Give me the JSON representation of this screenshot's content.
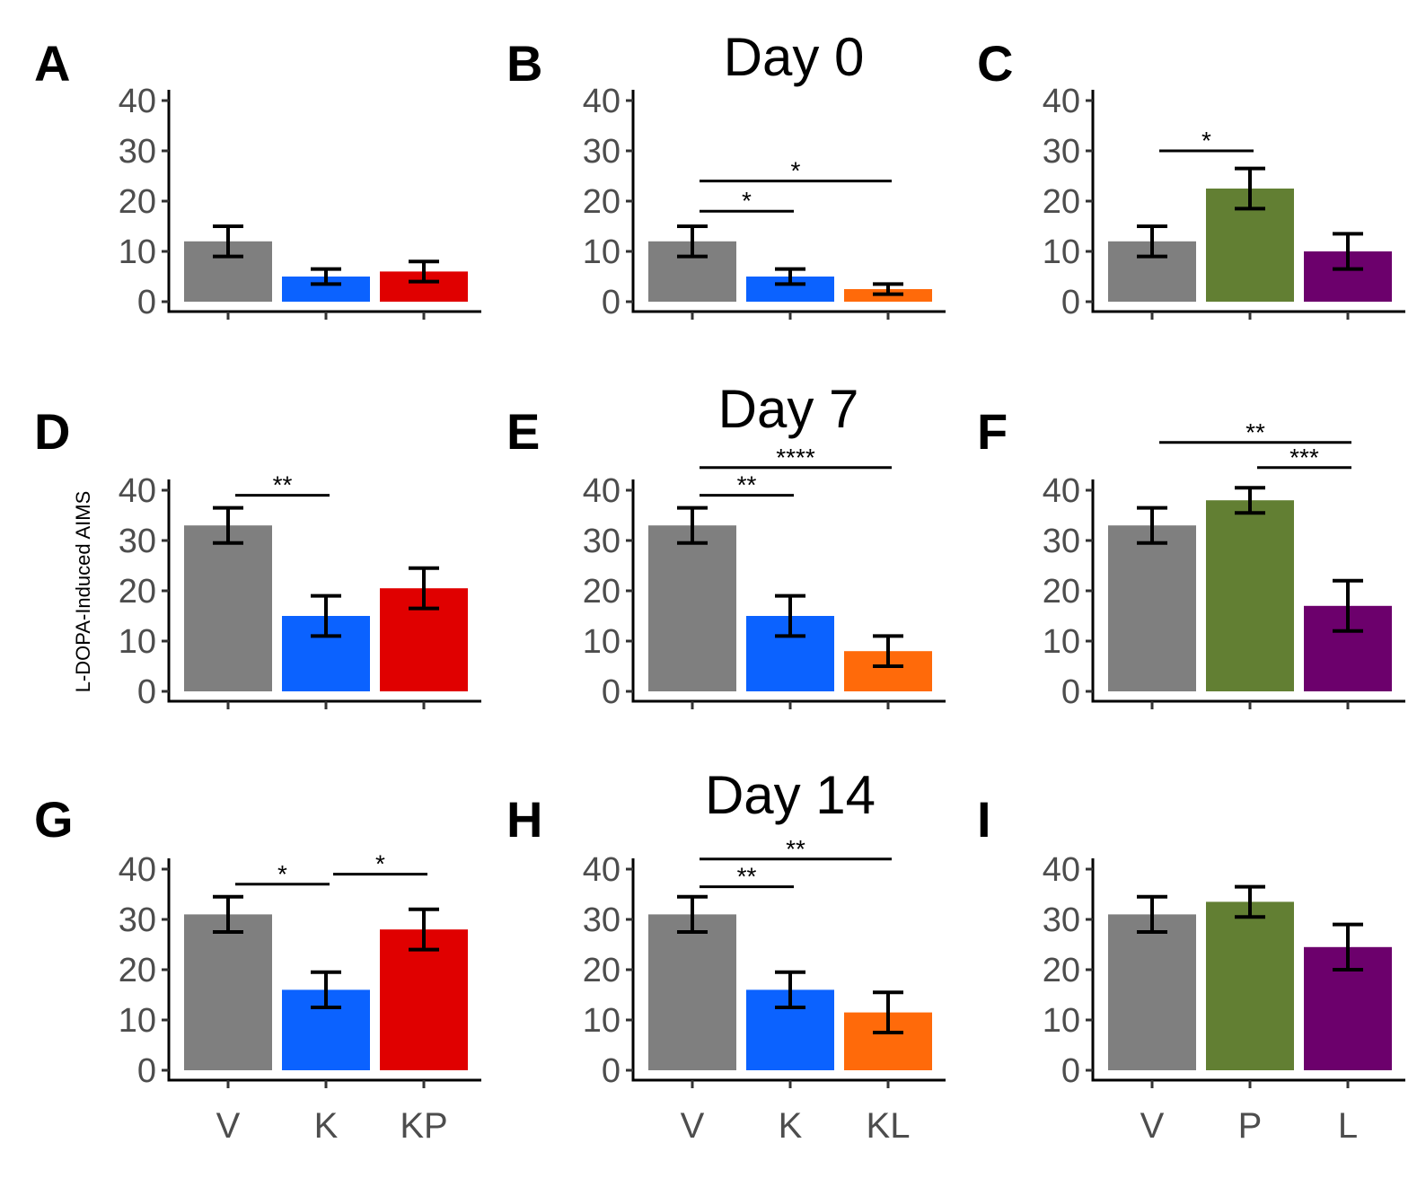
{
  "figure": {
    "row_titles": [
      "Day 0",
      "Day 7",
      "Day 14"
    ],
    "ylabel": "L-DOPA-Induced AIMS",
    "colors": {
      "V": "#7f7f7f",
      "K": "#0b62ff",
      "KP": "#e00000",
      "KL": "#ff6a0a",
      "P": "#627f33",
      "L": "#6c006c"
    }
  },
  "chart_data": [
    {
      "panel": "A",
      "type": "bar",
      "categories": [
        "V",
        "K",
        "KP"
      ],
      "values": [
        12,
        5,
        6
      ],
      "errors": [
        3,
        1.5,
        2
      ],
      "ylim": [
        0,
        40
      ],
      "yticks": [
        0,
        10,
        20,
        30,
        40
      ],
      "show_xlabels": false,
      "annotations": []
    },
    {
      "panel": "B",
      "type": "bar",
      "categories": [
        "V",
        "K",
        "KL"
      ],
      "values": [
        12,
        5,
        2.5
      ],
      "errors": [
        3,
        1.5,
        1
      ],
      "ylim": [
        0,
        40
      ],
      "yticks": [
        0,
        10,
        20,
        30,
        40
      ],
      "show_xlabels": false,
      "annotations": [
        {
          "from": 0,
          "to": 1,
          "y": 18,
          "label": "*"
        },
        {
          "from": 0,
          "to": 2,
          "y": 24,
          "label": "*"
        }
      ]
    },
    {
      "panel": "C",
      "type": "bar",
      "categories": [
        "V",
        "P",
        "L"
      ],
      "values": [
        12,
        22.5,
        10
      ],
      "errors": [
        3,
        4,
        3.5
      ],
      "ylim": [
        0,
        40
      ],
      "yticks": [
        0,
        10,
        20,
        30,
        40
      ],
      "show_xlabels": false,
      "annotations": [
        {
          "from": 0,
          "to": 1,
          "y": 30,
          "label": "*"
        }
      ]
    },
    {
      "panel": "D",
      "type": "bar",
      "categories": [
        "V",
        "K",
        "KP"
      ],
      "values": [
        33,
        15,
        20.5
      ],
      "errors": [
        3.5,
        4,
        4
      ],
      "ylim": [
        0,
        40
      ],
      "yticks": [
        0,
        10,
        20,
        30,
        40
      ],
      "show_xlabels": false,
      "annotations": [
        {
          "from": 0,
          "to": 1,
          "y": 39,
          "label": "**"
        }
      ]
    },
    {
      "panel": "E",
      "type": "bar",
      "categories": [
        "V",
        "K",
        "KL"
      ],
      "values": [
        33,
        15,
        8
      ],
      "errors": [
        3.5,
        4,
        3
      ],
      "ylim": [
        0,
        40
      ],
      "yticks": [
        0,
        10,
        20,
        30,
        40
      ],
      "show_xlabels": false,
      "annotations": [
        {
          "from": 0,
          "to": 1,
          "y": 39,
          "label": "**"
        },
        {
          "from": 0,
          "to": 2,
          "y": 44.5,
          "label": "****"
        }
      ]
    },
    {
      "panel": "F",
      "type": "bar",
      "categories": [
        "V",
        "P",
        "L"
      ],
      "values": [
        33,
        38,
        17
      ],
      "errors": [
        3.5,
        2.5,
        5
      ],
      "ylim": [
        0,
        40
      ],
      "yticks": [
        0,
        10,
        20,
        30,
        40
      ],
      "show_xlabels": false,
      "annotations": [
        {
          "from": 1,
          "to": 2,
          "y": 44.5,
          "label": "***"
        },
        {
          "from": 0,
          "to": 2,
          "y": 49.5,
          "label": "**"
        }
      ]
    },
    {
      "panel": "G",
      "type": "bar",
      "categories": [
        "V",
        "K",
        "KP"
      ],
      "values": [
        31,
        16,
        28
      ],
      "errors": [
        3.5,
        3.5,
        4
      ],
      "ylim": [
        0,
        40
      ],
      "yticks": [
        0,
        10,
        20,
        30,
        40
      ],
      "show_xlabels": true,
      "annotations": [
        {
          "from": 0,
          "to": 1,
          "y": 37,
          "label": "*"
        },
        {
          "from": 1,
          "to": 2,
          "y": 39,
          "label": "*"
        }
      ]
    },
    {
      "panel": "H",
      "type": "bar",
      "categories": [
        "V",
        "K",
        "KL"
      ],
      "values": [
        31,
        16,
        11.5
      ],
      "errors": [
        3.5,
        3.5,
        4
      ],
      "ylim": [
        0,
        40
      ],
      "yticks": [
        0,
        10,
        20,
        30,
        40
      ],
      "show_xlabels": true,
      "annotations": [
        {
          "from": 0,
          "to": 1,
          "y": 36.5,
          "label": "**"
        },
        {
          "from": 0,
          "to": 2,
          "y": 42,
          "label": "**"
        }
      ]
    },
    {
      "panel": "I",
      "type": "bar",
      "categories": [
        "V",
        "P",
        "L"
      ],
      "values": [
        31,
        33.5,
        24.5
      ],
      "errors": [
        3.5,
        3,
        4.5
      ],
      "ylim": [
        0,
        40
      ],
      "yticks": [
        0,
        10,
        20,
        30,
        40
      ],
      "show_xlabels": true,
      "annotations": []
    }
  ]
}
